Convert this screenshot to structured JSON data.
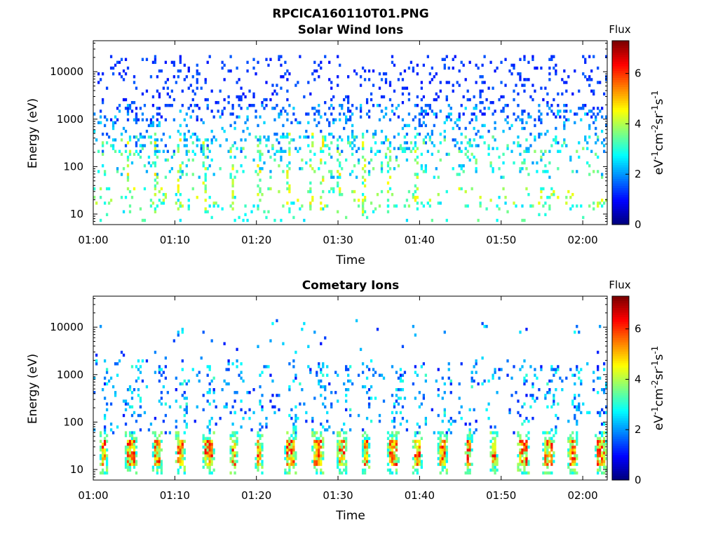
{
  "figure": {
    "title": "RPCICA160110T01.PNG"
  },
  "chart_data": [
    {
      "type": "heatmap",
      "title": "Solar Wind Ions",
      "xlabel": "Time",
      "ylabel": "Energy (eV)",
      "y_scale": "log",
      "xlim": [
        "01:00",
        "02:03"
      ],
      "ylim": [
        6,
        45000
      ],
      "x_ticks": [
        "01:00",
        "01:10",
        "01:20",
        "01:30",
        "01:40",
        "01:50",
        "02:00"
      ],
      "y_ticks": [
        "10",
        "100",
        "1000",
        "10000"
      ],
      "colorbar": {
        "title": "Flux",
        "label": "eV-1cm-2sr-1s-1",
        "range": [
          0,
          7.3
        ],
        "ticks": [
          "0",
          "2",
          "4",
          "6"
        ],
        "colormap": "jet"
      },
      "description_of_values": "log10 flux, sparse scatter of pixels",
      "bands": [
        {
          "energy_range_eV": [
            1000,
            20000
          ],
          "flux_level_range": [
            1.0,
            1.6
          ],
          "density": 0.25
        },
        {
          "energy_range_eV": [
            200,
            2000
          ],
          "flux_level_range": [
            1.4,
            2.6
          ],
          "density": 0.3
        },
        {
          "energy_range_eV": [
            60,
            400
          ],
          "flux_level_range": [
            2.0,
            3.8
          ],
          "density": 0.25
        },
        {
          "energy_range_eV": [
            15,
            35
          ],
          "flux_level_range": [
            2.5,
            4.6
          ],
          "density": 0.25
        },
        {
          "energy_range_eV": [
            7,
            15
          ],
          "flux_level_range": [
            2.5,
            3.6
          ],
          "density": 0.15
        }
      ],
      "bursts_minutes": [
        4.2,
        7.5,
        10.5,
        13.5,
        16.8,
        20.3,
        23.8,
        26.5,
        27.8,
        30,
        33,
        36.2,
        39.5
      ]
    },
    {
      "type": "heatmap",
      "title": "Cometary Ions",
      "xlabel": "Time",
      "ylabel": "Energy (eV)",
      "y_scale": "log",
      "xlim": [
        "01:00",
        "02:03"
      ],
      "ylim": [
        6,
        45000
      ],
      "x_ticks": [
        "01:00",
        "01:10",
        "01:20",
        "01:30",
        "01:40",
        "01:50",
        "02:00"
      ],
      "y_ticks": [
        "10",
        "100",
        "1000",
        "10000"
      ],
      "colorbar": {
        "title": "Flux",
        "label": "eV-1cm-2sr-1s-1",
        "range": [
          0,
          7.3
        ],
        "ticks": [
          "0",
          "2",
          "4",
          "6"
        ],
        "colormap": "jet"
      },
      "description_of_values": "log10 flux, strong low-energy periodic bursts",
      "periodic_bursts_minutes": [
        1.2,
        4.2,
        7.5,
        10.5,
        13.8,
        17,
        20.3,
        23.8,
        27,
        30.2,
        33.2,
        36.3,
        39.5,
        42.5,
        45.8,
        49,
        52.3,
        55.3,
        58.5,
        61.8
      ],
      "burst_core_energy_eV": [
        12,
        40
      ],
      "burst_core_flux_range": [
        3.5,
        6.5
      ]
    }
  ]
}
